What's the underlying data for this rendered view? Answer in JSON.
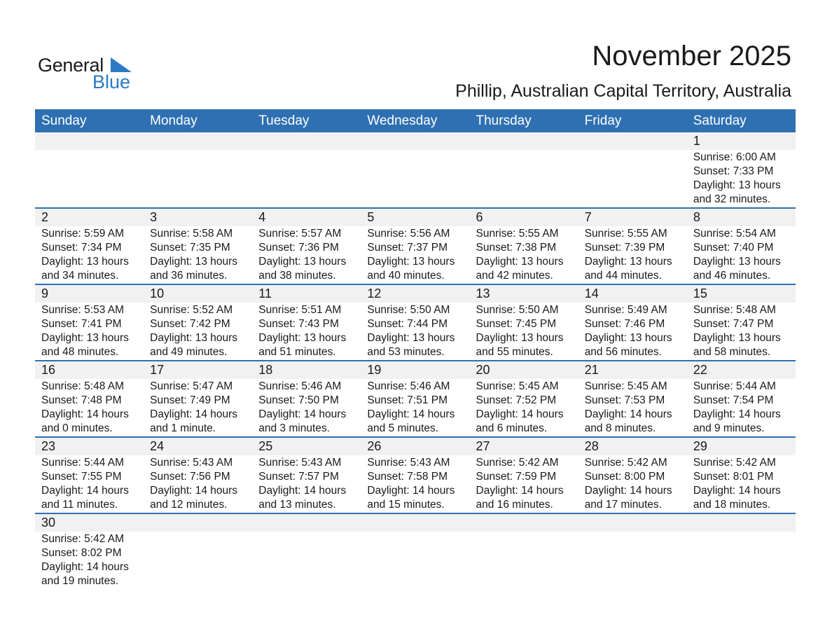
{
  "logo": {
    "text_general": "General",
    "text_blue": "Blue",
    "brand_color": "#2a7bc4"
  },
  "title": "November 2025",
  "subtitle": "Phillip, Australian Capital Territory, Australia",
  "colors": {
    "header": "#2e70b2",
    "strip": "#f1f1f1"
  },
  "weekdays": [
    "Sunday",
    "Monday",
    "Tuesday",
    "Wednesday",
    "Thursday",
    "Friday",
    "Saturday"
  ],
  "weeks": [
    [
      null,
      null,
      null,
      null,
      null,
      null,
      {
        "day": "1",
        "sunrise": "Sunrise: 6:00 AM",
        "sunset": "Sunset: 7:33 PM",
        "daylight": "Daylight: 13 hours",
        "minutes": "and 32 minutes."
      }
    ],
    [
      {
        "day": "2",
        "sunrise": "Sunrise: 5:59 AM",
        "sunset": "Sunset: 7:34 PM",
        "daylight": "Daylight: 13 hours",
        "minutes": "and 34 minutes."
      },
      {
        "day": "3",
        "sunrise": "Sunrise: 5:58 AM",
        "sunset": "Sunset: 7:35 PM",
        "daylight": "Daylight: 13 hours",
        "minutes": "and 36 minutes."
      },
      {
        "day": "4",
        "sunrise": "Sunrise: 5:57 AM",
        "sunset": "Sunset: 7:36 PM",
        "daylight": "Daylight: 13 hours",
        "minutes": "and 38 minutes."
      },
      {
        "day": "5",
        "sunrise": "Sunrise: 5:56 AM",
        "sunset": "Sunset: 7:37 PM",
        "daylight": "Daylight: 13 hours",
        "minutes": "and 40 minutes."
      },
      {
        "day": "6",
        "sunrise": "Sunrise: 5:55 AM",
        "sunset": "Sunset: 7:38 PM",
        "daylight": "Daylight: 13 hours",
        "minutes": "and 42 minutes."
      },
      {
        "day": "7",
        "sunrise": "Sunrise: 5:55 AM",
        "sunset": "Sunset: 7:39 PM",
        "daylight": "Daylight: 13 hours",
        "minutes": "and 44 minutes."
      },
      {
        "day": "8",
        "sunrise": "Sunrise: 5:54 AM",
        "sunset": "Sunset: 7:40 PM",
        "daylight": "Daylight: 13 hours",
        "minutes": "and 46 minutes."
      }
    ],
    [
      {
        "day": "9",
        "sunrise": "Sunrise: 5:53 AM",
        "sunset": "Sunset: 7:41 PM",
        "daylight": "Daylight: 13 hours",
        "minutes": "and 48 minutes."
      },
      {
        "day": "10",
        "sunrise": "Sunrise: 5:52 AM",
        "sunset": "Sunset: 7:42 PM",
        "daylight": "Daylight: 13 hours",
        "minutes": "and 49 minutes."
      },
      {
        "day": "11",
        "sunrise": "Sunrise: 5:51 AM",
        "sunset": "Sunset: 7:43 PM",
        "daylight": "Daylight: 13 hours",
        "minutes": "and 51 minutes."
      },
      {
        "day": "12",
        "sunrise": "Sunrise: 5:50 AM",
        "sunset": "Sunset: 7:44 PM",
        "daylight": "Daylight: 13 hours",
        "minutes": "and 53 minutes."
      },
      {
        "day": "13",
        "sunrise": "Sunrise: 5:50 AM",
        "sunset": "Sunset: 7:45 PM",
        "daylight": "Daylight: 13 hours",
        "minutes": "and 55 minutes."
      },
      {
        "day": "14",
        "sunrise": "Sunrise: 5:49 AM",
        "sunset": "Sunset: 7:46 PM",
        "daylight": "Daylight: 13 hours",
        "minutes": "and 56 minutes."
      },
      {
        "day": "15",
        "sunrise": "Sunrise: 5:48 AM",
        "sunset": "Sunset: 7:47 PM",
        "daylight": "Daylight: 13 hours",
        "minutes": "and 58 minutes."
      }
    ],
    [
      {
        "day": "16",
        "sunrise": "Sunrise: 5:48 AM",
        "sunset": "Sunset: 7:48 PM",
        "daylight": "Daylight: 14 hours",
        "minutes": "and 0 minutes."
      },
      {
        "day": "17",
        "sunrise": "Sunrise: 5:47 AM",
        "sunset": "Sunset: 7:49 PM",
        "daylight": "Daylight: 14 hours",
        "minutes": "and 1 minute."
      },
      {
        "day": "18",
        "sunrise": "Sunrise: 5:46 AM",
        "sunset": "Sunset: 7:50 PM",
        "daylight": "Daylight: 14 hours",
        "minutes": "and 3 minutes."
      },
      {
        "day": "19",
        "sunrise": "Sunrise: 5:46 AM",
        "sunset": "Sunset: 7:51 PM",
        "daylight": "Daylight: 14 hours",
        "minutes": "and 5 minutes."
      },
      {
        "day": "20",
        "sunrise": "Sunrise: 5:45 AM",
        "sunset": "Sunset: 7:52 PM",
        "daylight": "Daylight: 14 hours",
        "minutes": "and 6 minutes."
      },
      {
        "day": "21",
        "sunrise": "Sunrise: 5:45 AM",
        "sunset": "Sunset: 7:53 PM",
        "daylight": "Daylight: 14 hours",
        "minutes": "and 8 minutes."
      },
      {
        "day": "22",
        "sunrise": "Sunrise: 5:44 AM",
        "sunset": "Sunset: 7:54 PM",
        "daylight": "Daylight: 14 hours",
        "minutes": "and 9 minutes."
      }
    ],
    [
      {
        "day": "23",
        "sunrise": "Sunrise: 5:44 AM",
        "sunset": "Sunset: 7:55 PM",
        "daylight": "Daylight: 14 hours",
        "minutes": "and 11 minutes."
      },
      {
        "day": "24",
        "sunrise": "Sunrise: 5:43 AM",
        "sunset": "Sunset: 7:56 PM",
        "daylight": "Daylight: 14 hours",
        "minutes": "and 12 minutes."
      },
      {
        "day": "25",
        "sunrise": "Sunrise: 5:43 AM",
        "sunset": "Sunset: 7:57 PM",
        "daylight": "Daylight: 14 hours",
        "minutes": "and 13 minutes."
      },
      {
        "day": "26",
        "sunrise": "Sunrise: 5:43 AM",
        "sunset": "Sunset: 7:58 PM",
        "daylight": "Daylight: 14 hours",
        "minutes": "and 15 minutes."
      },
      {
        "day": "27",
        "sunrise": "Sunrise: 5:42 AM",
        "sunset": "Sunset: 7:59 PM",
        "daylight": "Daylight: 14 hours",
        "minutes": "and 16 minutes."
      },
      {
        "day": "28",
        "sunrise": "Sunrise: 5:42 AM",
        "sunset": "Sunset: 8:00 PM",
        "daylight": "Daylight: 14 hours",
        "minutes": "and 17 minutes."
      },
      {
        "day": "29",
        "sunrise": "Sunrise: 5:42 AM",
        "sunset": "Sunset: 8:01 PM",
        "daylight": "Daylight: 14 hours",
        "minutes": "and 18 minutes."
      }
    ],
    [
      {
        "day": "30",
        "sunrise": "Sunrise: 5:42 AM",
        "sunset": "Sunset: 8:02 PM",
        "daylight": "Daylight: 14 hours",
        "minutes": "and 19 minutes."
      },
      null,
      null,
      null,
      null,
      null,
      null
    ]
  ]
}
